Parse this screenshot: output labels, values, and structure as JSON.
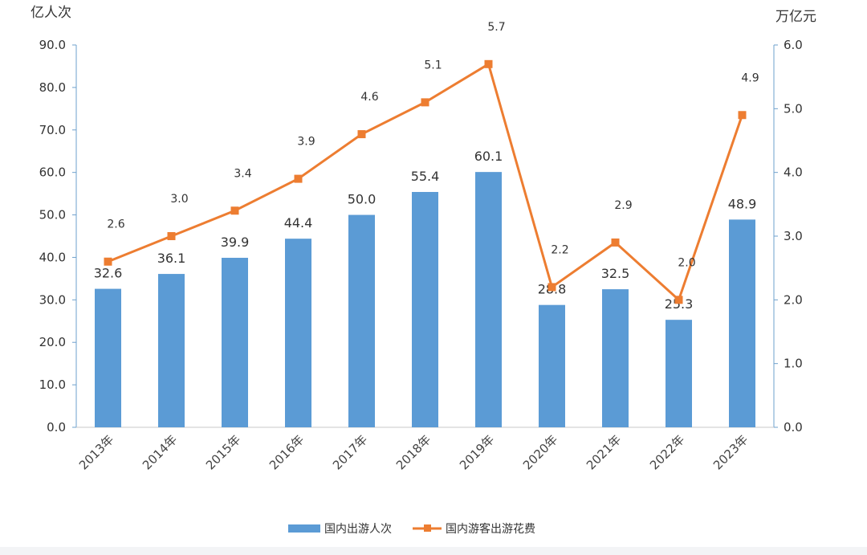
{
  "chart_data": {
    "type": "bar+line",
    "categories": [
      "2013年",
      "2014年",
      "2015年",
      "2016年",
      "2017年",
      "2018年",
      "2019年",
      "2020年",
      "2021年",
      "2022年",
      "2023年"
    ],
    "series": [
      {
        "name": "国内出游人次",
        "type": "bar",
        "axis": "left",
        "values": [
          32.6,
          36.1,
          39.9,
          44.4,
          50.0,
          55.4,
          60.1,
          28.8,
          32.5,
          25.3,
          48.9
        ],
        "labels": [
          "32.6",
          "36.1",
          "39.9",
          "44.4",
          "50.0",
          "55.4",
          "60.1",
          "28.8",
          "32.5",
          "25.3",
          "48.9"
        ]
      },
      {
        "name": "国内游客出游花费",
        "type": "line",
        "axis": "right",
        "values": [
          2.6,
          3.0,
          3.4,
          3.9,
          4.6,
          5.1,
          5.7,
          2.2,
          2.9,
          2.0,
          4.9
        ],
        "labels": [
          "2.6",
          "3.0",
          "3.4",
          "3.9",
          "4.6",
          "5.1",
          "5.7",
          "2.2",
          "2.9",
          "2.0",
          "4.9"
        ]
      }
    ],
    "left_axis": {
      "unit": "亿人次",
      "min": 0,
      "max": 90,
      "ticks": [
        "0.0",
        "10.0",
        "20.0",
        "30.0",
        "40.0",
        "50.0",
        "60.0",
        "70.0",
        "80.0",
        "90.0"
      ]
    },
    "right_axis": {
      "unit": "万亿元",
      "min": 0,
      "max": 6,
      "ticks": [
        "0.0",
        "1.0",
        "2.0",
        "3.0",
        "4.0",
        "5.0",
        "6.0"
      ]
    },
    "legend": {
      "position": "bottom-center",
      "items": [
        "国内出游人次",
        "国内游客出游花费"
      ]
    },
    "colors": {
      "bar": "#5b9bd5",
      "line": "#ed7d31",
      "axis": "#6ea0cc"
    }
  }
}
